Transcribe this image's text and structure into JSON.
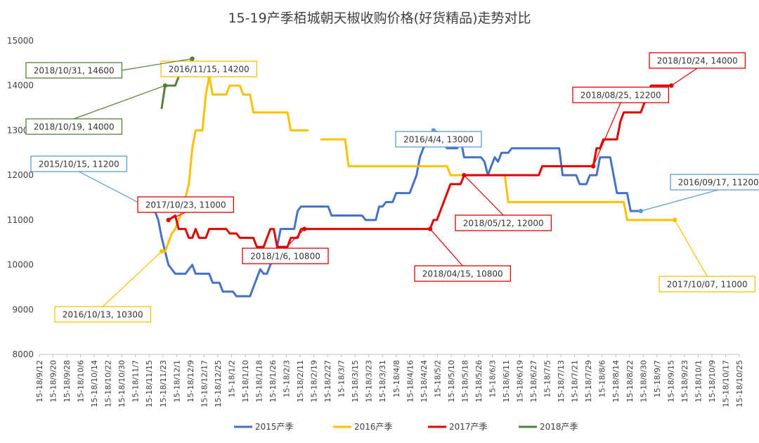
{
  "chart_data": {
    "type": "line",
    "title": "15-19产季栢城朝天椒收购价格(好货精品)走势对比",
    "xlabel": "",
    "ylabel": "",
    "ylim": [
      8000,
      15000
    ],
    "yticks": [
      "8000",
      "9000",
      "10000",
      "11000",
      "12000",
      "13000",
      "14000",
      "15000"
    ],
    "xticks": [
      "15-18/9/12",
      "15-18/9/20",
      "15-18/9/28",
      "15-18/10/6",
      "15-18/10/14",
      "15-18/10/22",
      "15-18/10/30",
      "15-18/11/7",
      "15-18/11/15",
      "15-18/11/23",
      "15-18/12/1",
      "15-18/12/9",
      "15-18/12/17",
      "15-18/12/25",
      "15-18/1/2",
      "15-18/1/10",
      "15-18/1/18",
      "15-18/1/26",
      "15-18/2/3",
      "15-18/2/11",
      "15-18/2/19",
      "15-18/2/27",
      "15-18/3/7",
      "15-18/3/15",
      "15-18/3/23",
      "15-18/3/31",
      "15-18/4/8",
      "15-18/4/16",
      "15-18/4/24",
      "15-18/5/2",
      "15-18/5/10",
      "15-18/5/18",
      "15-18/5/26",
      "15-18/6/3",
      "15-18/6/11",
      "15-18/6/19",
      "15-18/6/27",
      "15-18/7/5",
      "15-18/7/13",
      "15-18/7/21",
      "15-18/7/29",
      "15-18/8/6",
      "15-18/8/14",
      "15-18/8/22",
      "15-18/8/30",
      "15-18/9/7",
      "15-18/9/15",
      "15-18/9/23",
      "15-18/10/1",
      "15-18/10/9",
      "15-18/10/17",
      "15-18/10/25"
    ],
    "grid": false,
    "legend_position": "bottom",
    "series": [
      {
        "name": "2015产季",
        "color": "#4472C4",
        "points": [
          [
            34,
            11200
          ],
          [
            35,
            11000
          ],
          [
            36,
            10600
          ],
          [
            37,
            10300
          ],
          [
            38,
            10000
          ],
          [
            40,
            9800
          ],
          [
            43,
            9800
          ],
          [
            45,
            10000
          ],
          [
            46,
            9800
          ],
          [
            50,
            9800
          ],
          [
            51,
            9600
          ],
          [
            53,
            9600
          ],
          [
            54,
            9400
          ],
          [
            57,
            9400
          ],
          [
            58,
            9300
          ],
          [
            62,
            9300
          ],
          [
            63,
            9500
          ],
          [
            64,
            9700
          ],
          [
            65,
            9900
          ],
          [
            66,
            9800
          ],
          [
            67,
            9800
          ],
          [
            68,
            10000
          ],
          [
            69,
            10200
          ],
          [
            70,
            10400
          ],
          [
            71,
            10800
          ],
          [
            75,
            10800
          ],
          [
            76,
            11200
          ],
          [
            77,
            11300
          ],
          [
            85,
            11300
          ],
          [
            86,
            11100
          ],
          [
            95,
            11100
          ],
          [
            96,
            11000
          ],
          [
            99,
            11000
          ],
          [
            100,
            11300
          ],
          [
            101,
            11300
          ],
          [
            102,
            11400
          ],
          [
            104,
            11400
          ],
          [
            105,
            11600
          ],
          [
            109,
            11600
          ],
          [
            110,
            11800
          ],
          [
            111,
            12000
          ],
          [
            112,
            12400
          ],
          [
            113,
            12600
          ],
          [
            114,
            12700
          ],
          [
            116,
            13000
          ],
          [
            118,
            12800
          ],
          [
            120,
            12600
          ],
          [
            123,
            12600
          ],
          [
            124,
            12800
          ],
          [
            125,
            12400
          ],
          [
            130,
            12400
          ],
          [
            131,
            12300
          ],
          [
            132,
            12000
          ],
          [
            133,
            12200
          ],
          [
            134,
            12400
          ],
          [
            135,
            12300
          ],
          [
            136,
            12500
          ],
          [
            138,
            12500
          ],
          [
            139,
            12600
          ],
          [
            153,
            12600
          ],
          [
            154,
            12000
          ],
          [
            158,
            12000
          ],
          [
            159,
            11800
          ],
          [
            161,
            11800
          ],
          [
            162,
            12000
          ],
          [
            164,
            12000
          ],
          [
            165,
            12400
          ],
          [
            168,
            12400
          ],
          [
            169,
            12000
          ],
          [
            170,
            11600
          ],
          [
            173,
            11600
          ],
          [
            174,
            11200
          ],
          [
            177,
            11200
          ]
        ]
      },
      {
        "name": "2016产季",
        "color": "#FFC000",
        "points": [
          [
            36,
            10300
          ],
          [
            37,
            10300
          ],
          [
            38,
            10500
          ],
          [
            39,
            10700
          ],
          [
            40,
            10800
          ],
          [
            41,
            11000
          ],
          [
            42,
            11200
          ],
          [
            43,
            11500
          ],
          [
            44,
            11800
          ],
          [
            45,
            12600
          ],
          [
            46,
            13000
          ],
          [
            48,
            13000
          ],
          [
            49,
            13800
          ],
          [
            50,
            14200
          ],
          [
            51,
            13800
          ],
          [
            55,
            13800
          ],
          [
            56,
            14000
          ],
          [
            59,
            14000
          ],
          [
            60,
            13800
          ],
          [
            62,
            13800
          ],
          [
            63,
            13400
          ],
          [
            73,
            13400
          ],
          [
            74,
            13000
          ],
          [
            79,
            13000
          ],
          [
            null,
            null
          ],
          [
            83,
            12800
          ],
          [
            90,
            12800
          ],
          [
            91,
            12200
          ],
          [
            120,
            12200
          ],
          [
            121,
            12000
          ],
          [
            132,
            12000
          ],
          [
            133,
            12000
          ],
          [
            137,
            12000
          ],
          [
            138,
            11400
          ],
          [
            172,
            11400
          ],
          [
            173,
            11000
          ],
          [
            187,
            11000
          ]
        ]
      },
      {
        "name": "2017产季",
        "color": "#E00000",
        "points": [
          [
            38,
            11000
          ],
          [
            40,
            11100
          ],
          [
            41,
            10800
          ],
          [
            43,
            10800
          ],
          [
            44,
            10600
          ],
          [
            45,
            10600
          ],
          [
            46,
            10800
          ],
          [
            47,
            10600
          ],
          [
            49,
            10600
          ],
          [
            50,
            10800
          ],
          [
            55,
            10800
          ],
          [
            56,
            10700
          ],
          [
            58,
            10700
          ],
          [
            59,
            10600
          ],
          [
            63,
            10600
          ],
          [
            64,
            10400
          ],
          [
            66,
            10400
          ],
          [
            67,
            10600
          ],
          [
            68,
            10800
          ],
          [
            69,
            10800
          ],
          [
            70,
            10400
          ],
          [
            73,
            10400
          ],
          [
            74,
            10600
          ],
          [
            76,
            10600
          ],
          [
            77,
            10800
          ],
          [
            78,
            10800
          ],
          [
            115,
            10800
          ],
          [
            116,
            11000
          ],
          [
            117,
            11000
          ],
          [
            118,
            11200
          ],
          [
            119,
            11400
          ],
          [
            120,
            11600
          ],
          [
            121,
            11800
          ],
          [
            124,
            11800
          ],
          [
            125,
            12000
          ],
          [
            147,
            12000
          ],
          [
            148,
            12200
          ],
          [
            163,
            12200
          ],
          [
            164,
            12600
          ],
          [
            165,
            12600
          ],
          [
            166,
            12800
          ],
          [
            170,
            12800
          ],
          [
            171,
            13200
          ],
          [
            172,
            13400
          ],
          [
            177,
            13400
          ],
          [
            178,
            13600
          ],
          [
            179,
            13800
          ],
          [
            180,
            14000
          ],
          [
            185,
            14000
          ],
          [
            186,
            14000
          ]
        ]
      },
      {
        "name": "2018产季",
        "color": "#548235",
        "points": [
          [
            36,
            13500
          ],
          [
            37,
            14000
          ],
          [
            40,
            14000
          ],
          [
            41,
            14200
          ],
          [
            43,
            14400
          ],
          [
            44,
            14500
          ],
          [
            45,
            14600
          ]
        ]
      }
    ],
    "annotations": [
      {
        "text": "2015/10/15, 11200",
        "color": "#5B9BD5",
        "point": [
          34,
          11200
        ]
      },
      {
        "text": "2016/4/4, 13000",
        "color": "#5B9BD5",
        "point": [
          116,
          13000
        ]
      },
      {
        "text": "2016/09/17, 11200",
        "color": "#5B9BD5",
        "point": [
          177,
          11200
        ]
      },
      {
        "text": "2016/10/13, 10300",
        "color": "#FFC000",
        "point": [
          36,
          10300
        ]
      },
      {
        "text": "2016/11/15, 14200",
        "color": "#FFC000",
        "point": [
          50,
          14200
        ]
      },
      {
        "text": "2017/10/07, 11000",
        "color": "#FFC000",
        "point": [
          187,
          11000
        ]
      },
      {
        "text": "2017/10/23, 11000",
        "color": "#E00000",
        "point": [
          38,
          11000
        ]
      },
      {
        "text": "2018/1/6, 10800",
        "color": "#E00000",
        "point": [
          78,
          10800
        ]
      },
      {
        "text": "2018/04/15, 10800",
        "color": "#E00000",
        "point": [
          115,
          10800
        ]
      },
      {
        "text": "2018/05/12, 12000",
        "color": "#E00000",
        "point": [
          125,
          12000
        ]
      },
      {
        "text": "2018/08/25, 12200",
        "color": "#E00000",
        "point": [
          163,
          12200
        ]
      },
      {
        "text": "2018/10/24, 14000",
        "color": "#E00000",
        "point": [
          186,
          14000
        ]
      },
      {
        "text": "2018/10/31, 14600",
        "color": "#548235",
        "point": [
          45,
          14600
        ]
      },
      {
        "text": "2018/10/19, 14000",
        "color": "#548235",
        "point": [
          37,
          14000
        ]
      }
    ]
  }
}
